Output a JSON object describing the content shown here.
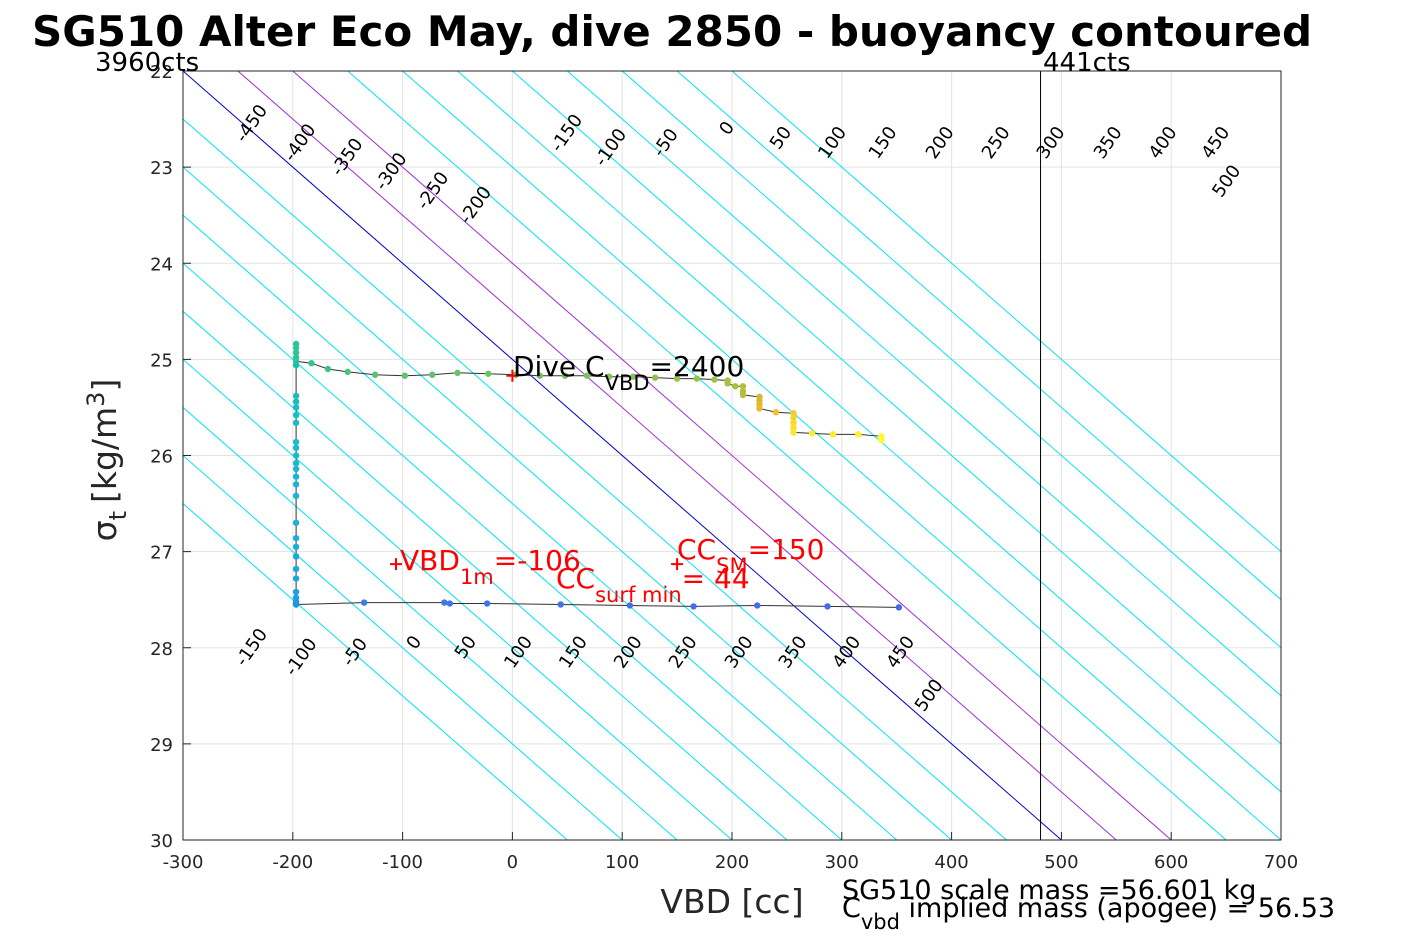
{
  "chart_data": {
    "type": "scatter",
    "title": "SG510 Alter Eco May, dive 2850 - buoyancy contoured",
    "xlabel": "VBD [cc]",
    "ylabel": {
      "sym": "σ",
      "sub": "t",
      "unit": "[kg/m",
      "sup": "3",
      "close": "]"
    },
    "xlim": [
      -300,
      700
    ],
    "ylim": [
      22,
      30
    ],
    "y_reversed": true,
    "grid": true,
    "x_ticks": [
      -300,
      -200,
      -100,
      0,
      100,
      200,
      300,
      400,
      500,
      600,
      700
    ],
    "y_ticks": [
      22,
      23,
      24,
      25,
      26,
      27,
      28,
      29,
      30
    ],
    "x_tick_labels": [
      "-300",
      "-200",
      "-100",
      "0",
      "100",
      "200",
      "300",
      "400",
      "500",
      "600",
      "700"
    ],
    "y_tick_labels": [
      "22",
      "23",
      "24",
      "25",
      "26",
      "27",
      "28",
      "29",
      "30"
    ],
    "corner_labels": {
      "left": "3960cts",
      "right": "441cts"
    },
    "limit_line_x": 481,
    "contour_slope_cc_per_sigma": 100,
    "contours": [
      {
        "label": "-450",
        "level": -450,
        "color": "#00e5ee"
      },
      {
        "label": "-400",
        "level": -400,
        "color": "#00e5ee"
      },
      {
        "label": "-350",
        "level": -350,
        "color": "#00e5ee"
      },
      {
        "label": "-300",
        "level": -300,
        "color": "#00e5ee"
      },
      {
        "label": "-250",
        "level": -250,
        "color": "#00e5ee"
      },
      {
        "label": "-200",
        "level": -200,
        "color": "#00e5ee"
      },
      {
        "label": "-150",
        "level": -150,
        "color": "#00e5ee"
      },
      {
        "label": "-100",
        "level": -100,
        "color": "#00e5ee"
      },
      {
        "label": "-50",
        "level": -50,
        "color": "#00e5ee"
      },
      {
        "label": "0",
        "level": 0,
        "color": "#0000cc"
      },
      {
        "label": "50",
        "level": 50,
        "color": "#9b30d9"
      },
      {
        "label": "100",
        "level": 100,
        "color": "#9b30d9"
      },
      {
        "label": "150",
        "level": 150,
        "color": "#00e5ee"
      },
      {
        "label": "200",
        "level": 200,
        "color": "#00e5ee"
      },
      {
        "label": "250",
        "level": 250,
        "color": "#00e5ee"
      },
      {
        "label": "300",
        "level": 300,
        "color": "#00e5ee"
      },
      {
        "label": "350",
        "level": 350,
        "color": "#00e5ee"
      },
      {
        "label": "400",
        "level": 400,
        "color": "#00e5ee"
      },
      {
        "label": "450",
        "level": 450,
        "color": "#00e5ee"
      },
      {
        "label": "500",
        "level": 500,
        "color": "#00e5ee"
      }
    ],
    "contour_labels_top": [
      {
        "label": "-450",
        "x": -237,
        "y": 22.55
      },
      {
        "label": "-400",
        "x": -193,
        "y": 22.75
      },
      {
        "label": "-350",
        "x": -150,
        "y": 22.9
      },
      {
        "label": "-300",
        "x": -110,
        "y": 23.05
      },
      {
        "label": "-250",
        "x": -72,
        "y": 23.25
      },
      {
        "label": "-200",
        "x": -33,
        "y": 23.4
      },
      {
        "label": "-150",
        "x": 50,
        "y": 22.65
      },
      {
        "label": "-100",
        "x": 90,
        "y": 22.8
      },
      {
        "label": "-50",
        "x": 140,
        "y": 22.75
      },
      {
        "label": "0",
        "x": 196,
        "y": 22.6
      },
      {
        "label": "50",
        "x": 245,
        "y": 22.7
      },
      {
        "label": "100",
        "x": 292,
        "y": 22.75
      },
      {
        "label": "150",
        "x": 338,
        "y": 22.75
      },
      {
        "label": "200",
        "x": 390,
        "y": 22.75
      },
      {
        "label": "250",
        "x": 441,
        "y": 22.75
      },
      {
        "label": "300",
        "x": 491,
        "y": 22.75
      },
      {
        "label": "350",
        "x": 543,
        "y": 22.75
      },
      {
        "label": "400",
        "x": 593,
        "y": 22.75
      },
      {
        "label": "450",
        "x": 641,
        "y": 22.75
      },
      {
        "label": "500",
        "x": 651,
        "y": 23.15
      }
    ],
    "contour_labels_bottom": [
      {
        "label": "-150",
        "x": -237,
        "y": 28.0
      },
      {
        "label": "-100",
        "x": -192,
        "y": 28.1
      },
      {
        "label": "-50",
        "x": -143,
        "y": 28.05
      },
      {
        "label": "0",
        "x": -89,
        "y": 27.95
      },
      {
        "label": "50",
        "x": -42,
        "y": 28.0
      },
      {
        "label": "100",
        "x": 6,
        "y": 28.05
      },
      {
        "label": "150",
        "x": 56,
        "y": 28.05
      },
      {
        "label": "200",
        "x": 106,
        "y": 28.05
      },
      {
        "label": "250",
        "x": 156,
        "y": 28.05
      },
      {
        "label": "300",
        "x": 207,
        "y": 28.05
      },
      {
        "label": "350",
        "x": 256,
        "y": 28.05
      },
      {
        "label": "400",
        "x": 305,
        "y": 28.05
      },
      {
        "label": "450",
        "x": 354,
        "y": 28.05
      },
      {
        "label": "500",
        "x": 380,
        "y": 28.5
      }
    ],
    "series": [
      {
        "points": [
          {
            "x": -197,
            "y": 24.84,
            "c": "#2fc496"
          },
          {
            "x": -197,
            "y": 24.88,
            "c": "#2fc496"
          },
          {
            "x": -197,
            "y": 24.93,
            "c": "#2fc496"
          },
          {
            "x": -197,
            "y": 24.98,
            "c": "#2fc496"
          },
          {
            "x": -197,
            "y": 25.02,
            "c": "#2fc496"
          },
          {
            "x": -183,
            "y": 25.04,
            "c": "#36c38c"
          },
          {
            "x": -168,
            "y": 25.1,
            "c": "#3fc384"
          },
          {
            "x": -150,
            "y": 25.13,
            "c": "#4ac37e"
          },
          {
            "x": -125,
            "y": 25.16,
            "c": "#55c377"
          },
          {
            "x": -98,
            "y": 25.17,
            "c": "#5ec270"
          },
          {
            "x": -73,
            "y": 25.16,
            "c": "#64c26c"
          },
          {
            "x": -50,
            "y": 25.14,
            "c": "#68c268"
          },
          {
            "x": -22,
            "y": 25.15,
            "c": "#6cc265"
          },
          {
            "x": 3,
            "y": 25.16,
            "c": "#70c262"
          },
          {
            "x": 25,
            "y": 25.17,
            "c": "#74c25e"
          },
          {
            "x": 48,
            "y": 25.17,
            "c": "#78c25b"
          },
          {
            "x": 68,
            "y": 25.17,
            "c": "#7cc258"
          },
          {
            "x": 88,
            "y": 25.18,
            "c": "#80c255"
          },
          {
            "x": 110,
            "y": 25.18,
            "c": "#86c252"
          },
          {
            "x": 130,
            "y": 25.19,
            "c": "#8cc24f"
          },
          {
            "x": 150,
            "y": 25.2,
            "c": "#92c24c"
          },
          {
            "x": 168,
            "y": 25.2,
            "c": "#98c249"
          },
          {
            "x": 184,
            "y": 25.21,
            "c": "#9ec246"
          },
          {
            "x": 196,
            "y": 25.22,
            "c": "#a2c243"
          },
          {
            "x": 196,
            "y": 25.25,
            "c": "#a6c240"
          },
          {
            "x": 203,
            "y": 25.28,
            "c": "#aac13e"
          },
          {
            "x": 210,
            "y": 25.28,
            "c": "#b0c03b"
          },
          {
            "x": 210,
            "y": 25.33,
            "c": "#b4c039"
          },
          {
            "x": 210,
            "y": 25.37,
            "c": "#b8bf37"
          },
          {
            "x": 225,
            "y": 25.39,
            "c": "#d2b932"
          },
          {
            "x": 225,
            "y": 25.43,
            "c": "#dcb830"
          },
          {
            "x": 225,
            "y": 25.47,
            "c": "#e5b82e"
          },
          {
            "x": 225,
            "y": 25.51,
            "c": "#f0b72c"
          },
          {
            "x": 240,
            "y": 25.55,
            "c": "#f7be2c"
          },
          {
            "x": 256,
            "y": 25.56,
            "c": "#f9c92c"
          },
          {
            "x": 256,
            "y": 25.61,
            "c": "#fad22c"
          },
          {
            "x": 256,
            "y": 25.66,
            "c": "#fbd82c"
          },
          {
            "x": 256,
            "y": 25.71,
            "c": "#fce02c"
          },
          {
            "x": 256,
            "y": 25.76,
            "c": "#fce62c"
          },
          {
            "x": 273,
            "y": 25.77,
            "c": "#fdeb2c"
          },
          {
            "x": 292,
            "y": 25.78,
            "c": "#fdee2c"
          },
          {
            "x": 315,
            "y": 25.78,
            "c": "#fef22c"
          },
          {
            "x": 336,
            "y": 25.8,
            "c": "#fef62c"
          },
          {
            "x": 336,
            "y": 25.84,
            "c": "#fffa2c"
          }
        ]
      },
      {
        "points": [
          {
            "x": -197,
            "y": 25.06,
            "c": "#1cbcb0"
          },
          {
            "x": -197,
            "y": 25.38,
            "c": "#1cbcb8"
          },
          {
            "x": -197,
            "y": 25.44,
            "c": "#1cbcbc"
          },
          {
            "x": -197,
            "y": 25.5,
            "c": "#1cbcc0"
          },
          {
            "x": -197,
            "y": 25.58,
            "c": "#1cbcc2"
          },
          {
            "x": -197,
            "y": 25.66,
            "c": "#1cbcc4"
          },
          {
            "x": -197,
            "y": 25.86,
            "c": "#1cbac8"
          },
          {
            "x": -197,
            "y": 25.92,
            "c": "#1cbacc"
          },
          {
            "x": -197,
            "y": 26.0,
            "c": "#1cb8ce"
          },
          {
            "x": -197,
            "y": 26.08,
            "c": "#1cb8d0"
          },
          {
            "x": -197,
            "y": 26.14,
            "c": "#1cb6d2"
          },
          {
            "x": -197,
            "y": 26.22,
            "c": "#1cb6d4"
          },
          {
            "x": -197,
            "y": 26.3,
            "c": "#1cb4d6"
          },
          {
            "x": -197,
            "y": 26.42,
            "c": "#1cb2d8"
          },
          {
            "x": -197,
            "y": 26.7,
            "c": "#1eaed8"
          },
          {
            "x": -197,
            "y": 26.86,
            "c": "#1eacda"
          },
          {
            "x": -197,
            "y": 26.95,
            "c": "#1eaadb"
          },
          {
            "x": -197,
            "y": 27.05,
            "c": "#1ea8dc"
          },
          {
            "x": -197,
            "y": 27.18,
            "c": "#1ea6dd"
          },
          {
            "x": -197,
            "y": 27.28,
            "c": "#20a4de"
          },
          {
            "x": -197,
            "y": 27.42,
            "c": "#20a0df"
          },
          {
            "x": -197,
            "y": 27.48,
            "c": "#209ee0"
          },
          {
            "x": -197,
            "y": 27.52,
            "c": "#209ce0"
          },
          {
            "x": -197,
            "y": 27.55,
            "c": "#209ae0"
          }
        ]
      },
      {
        "points": [
          {
            "x": -197,
            "y": 27.55,
            "c": "#2196e0"
          },
          {
            "x": -135,
            "y": 27.53,
            "c": "#3b7ae8"
          },
          {
            "x": -62,
            "y": 27.53,
            "c": "#3d78e9"
          },
          {
            "x": -57,
            "y": 27.54,
            "c": "#3d78e9"
          },
          {
            "x": -23,
            "y": 27.54,
            "c": "#3e76ea"
          },
          {
            "x": 44,
            "y": 27.55,
            "c": "#3f74ea"
          },
          {
            "x": 107,
            "y": 27.56,
            "c": "#4072eb"
          },
          {
            "x": 165,
            "y": 27.57,
            "c": "#4170eb"
          },
          {
            "x": 223,
            "y": 27.56,
            "c": "#426eeb"
          },
          {
            "x": 287,
            "y": 27.57,
            "c": "#436cec"
          },
          {
            "x": 352,
            "y": 27.58,
            "c": "#446aec"
          }
        ]
      }
    ],
    "markers": [
      {
        "x": 0,
        "y": 25.17,
        "c": "#ff0000"
      },
      {
        "x": -106,
        "y": 27.13,
        "c": "#ff0000"
      },
      {
        "x": 150,
        "y": 27.13,
        "c": "#ff0000"
      }
    ],
    "annotations": {
      "dive_cvbd": {
        "pre": "Dive C",
        "sub": "VBD",
        "post": "=2400"
      },
      "vbd_1m": {
        "pre": "VBD",
        "sub": "1m",
        "post": "=-106"
      },
      "cc_sm": {
        "pre": "CC",
        "sub": "SM",
        "post": "=150"
      },
      "cc_surf": {
        "pre": "CC",
        "sub": "surf min",
        "post": "= 44"
      }
    },
    "footer": {
      "scale_mass": "SG510 scale mass =56.601 kg",
      "implied_pre": "C",
      "implied_sub": "vbd",
      "implied_post": " implied mass (apogee) = 56.53"
    },
    "colors": {
      "accent_red": "#ff0000",
      "grid": "#e0e0e0",
      "axis": "#262626"
    }
  }
}
